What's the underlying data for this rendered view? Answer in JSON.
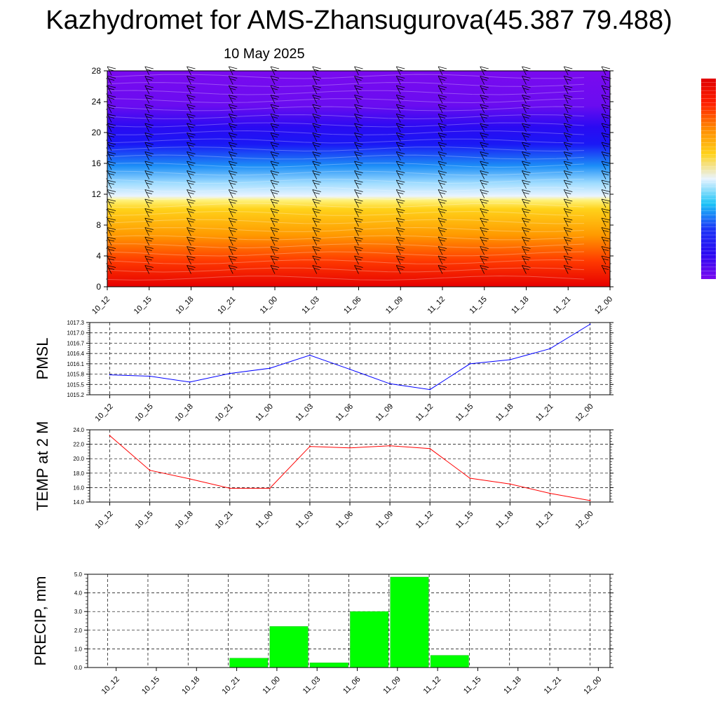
{
  "header": {
    "title": "Kazhydromet for AMS-Zhansugurova(45.387 79.488)",
    "date": "10 May 2025"
  },
  "chart_data": [
    {
      "type": "heatmap",
      "x_ticks": [
        "10_12",
        "10_15",
        "10_18",
        "10_21",
        "11_00",
        "11_03",
        "11_06",
        "11_09",
        "11_12",
        "11_15",
        "11_18",
        "11_21",
        "12_00"
      ],
      "ylim": [
        0,
        28
      ],
      "y_ticks": [
        0,
        4,
        8,
        12,
        16,
        20,
        24,
        28
      ],
      "colorbar": {
        "colors": [
          "#7a0aef",
          "#2a0af2",
          "#1c36f7",
          "#1cc4f7",
          "#e8f3ff",
          "#ffd21a",
          "#ff8a00",
          "#ff2000",
          "#e00000"
        ]
      },
      "wind_barbs": true
    },
    {
      "type": "line",
      "ylabel": "PMSL",
      "categories": [
        "10_12",
        "10_15",
        "10_18",
        "10_21",
        "11_00",
        "11_03",
        "11_06",
        "11_09",
        "11_12",
        "11_15",
        "11_18",
        "11_21",
        "12_00"
      ],
      "values": [
        1015.78,
        1015.74,
        1015.57,
        1015.82,
        1015.97,
        1016.35,
        1015.94,
        1015.52,
        1015.35,
        1016.1,
        1016.22,
        1016.54,
        1017.25
      ],
      "ylim": [
        1015.2,
        1017.3
      ],
      "y_ticks": [
        "1015.2",
        "1015.5",
        "1015.8",
        "1016.1",
        "1016.4",
        "1016.7",
        "1017.0",
        "1017.3"
      ],
      "color": "#0000ff",
      "grid": true
    },
    {
      "type": "line",
      "ylabel": "TEMP at 2 M",
      "categories": [
        "10_12",
        "10_15",
        "10_18",
        "10_21",
        "11_00",
        "11_03",
        "11_06",
        "11_09",
        "11_12",
        "11_15",
        "11_18",
        "11_21",
        "12_00"
      ],
      "values": [
        23.2,
        18.4,
        17.2,
        15.9,
        15.9,
        21.7,
        21.5,
        21.8,
        21.4,
        17.3,
        16.5,
        15.2,
        14.2
      ],
      "ylim": [
        14.0,
        24.0
      ],
      "y_ticks": [
        "14.0",
        "16.0",
        "18.0",
        "20.0",
        "22.0",
        "24.0"
      ],
      "color": "#ff0000",
      "grid": true
    },
    {
      "type": "bar",
      "ylabel": "PRECIP, mm",
      "categories": [
        "10_12",
        "10_15",
        "10_18",
        "10_21",
        "11_00",
        "11_03",
        "11_06",
        "11_09",
        "11_12",
        "11_15",
        "11_18",
        "11_21",
        "12_00"
      ],
      "values": [
        0,
        0,
        0,
        0.5,
        2.2,
        0.25,
        3.0,
        4.85,
        0.65,
        0,
        0,
        0,
        0
      ],
      "ylim": [
        0,
        5.0
      ],
      "y_ticks": [
        "0.0",
        "1.0",
        "2.0",
        "3.0",
        "4.0",
        "5.0"
      ],
      "color": "#00ff00",
      "grid": true
    }
  ]
}
